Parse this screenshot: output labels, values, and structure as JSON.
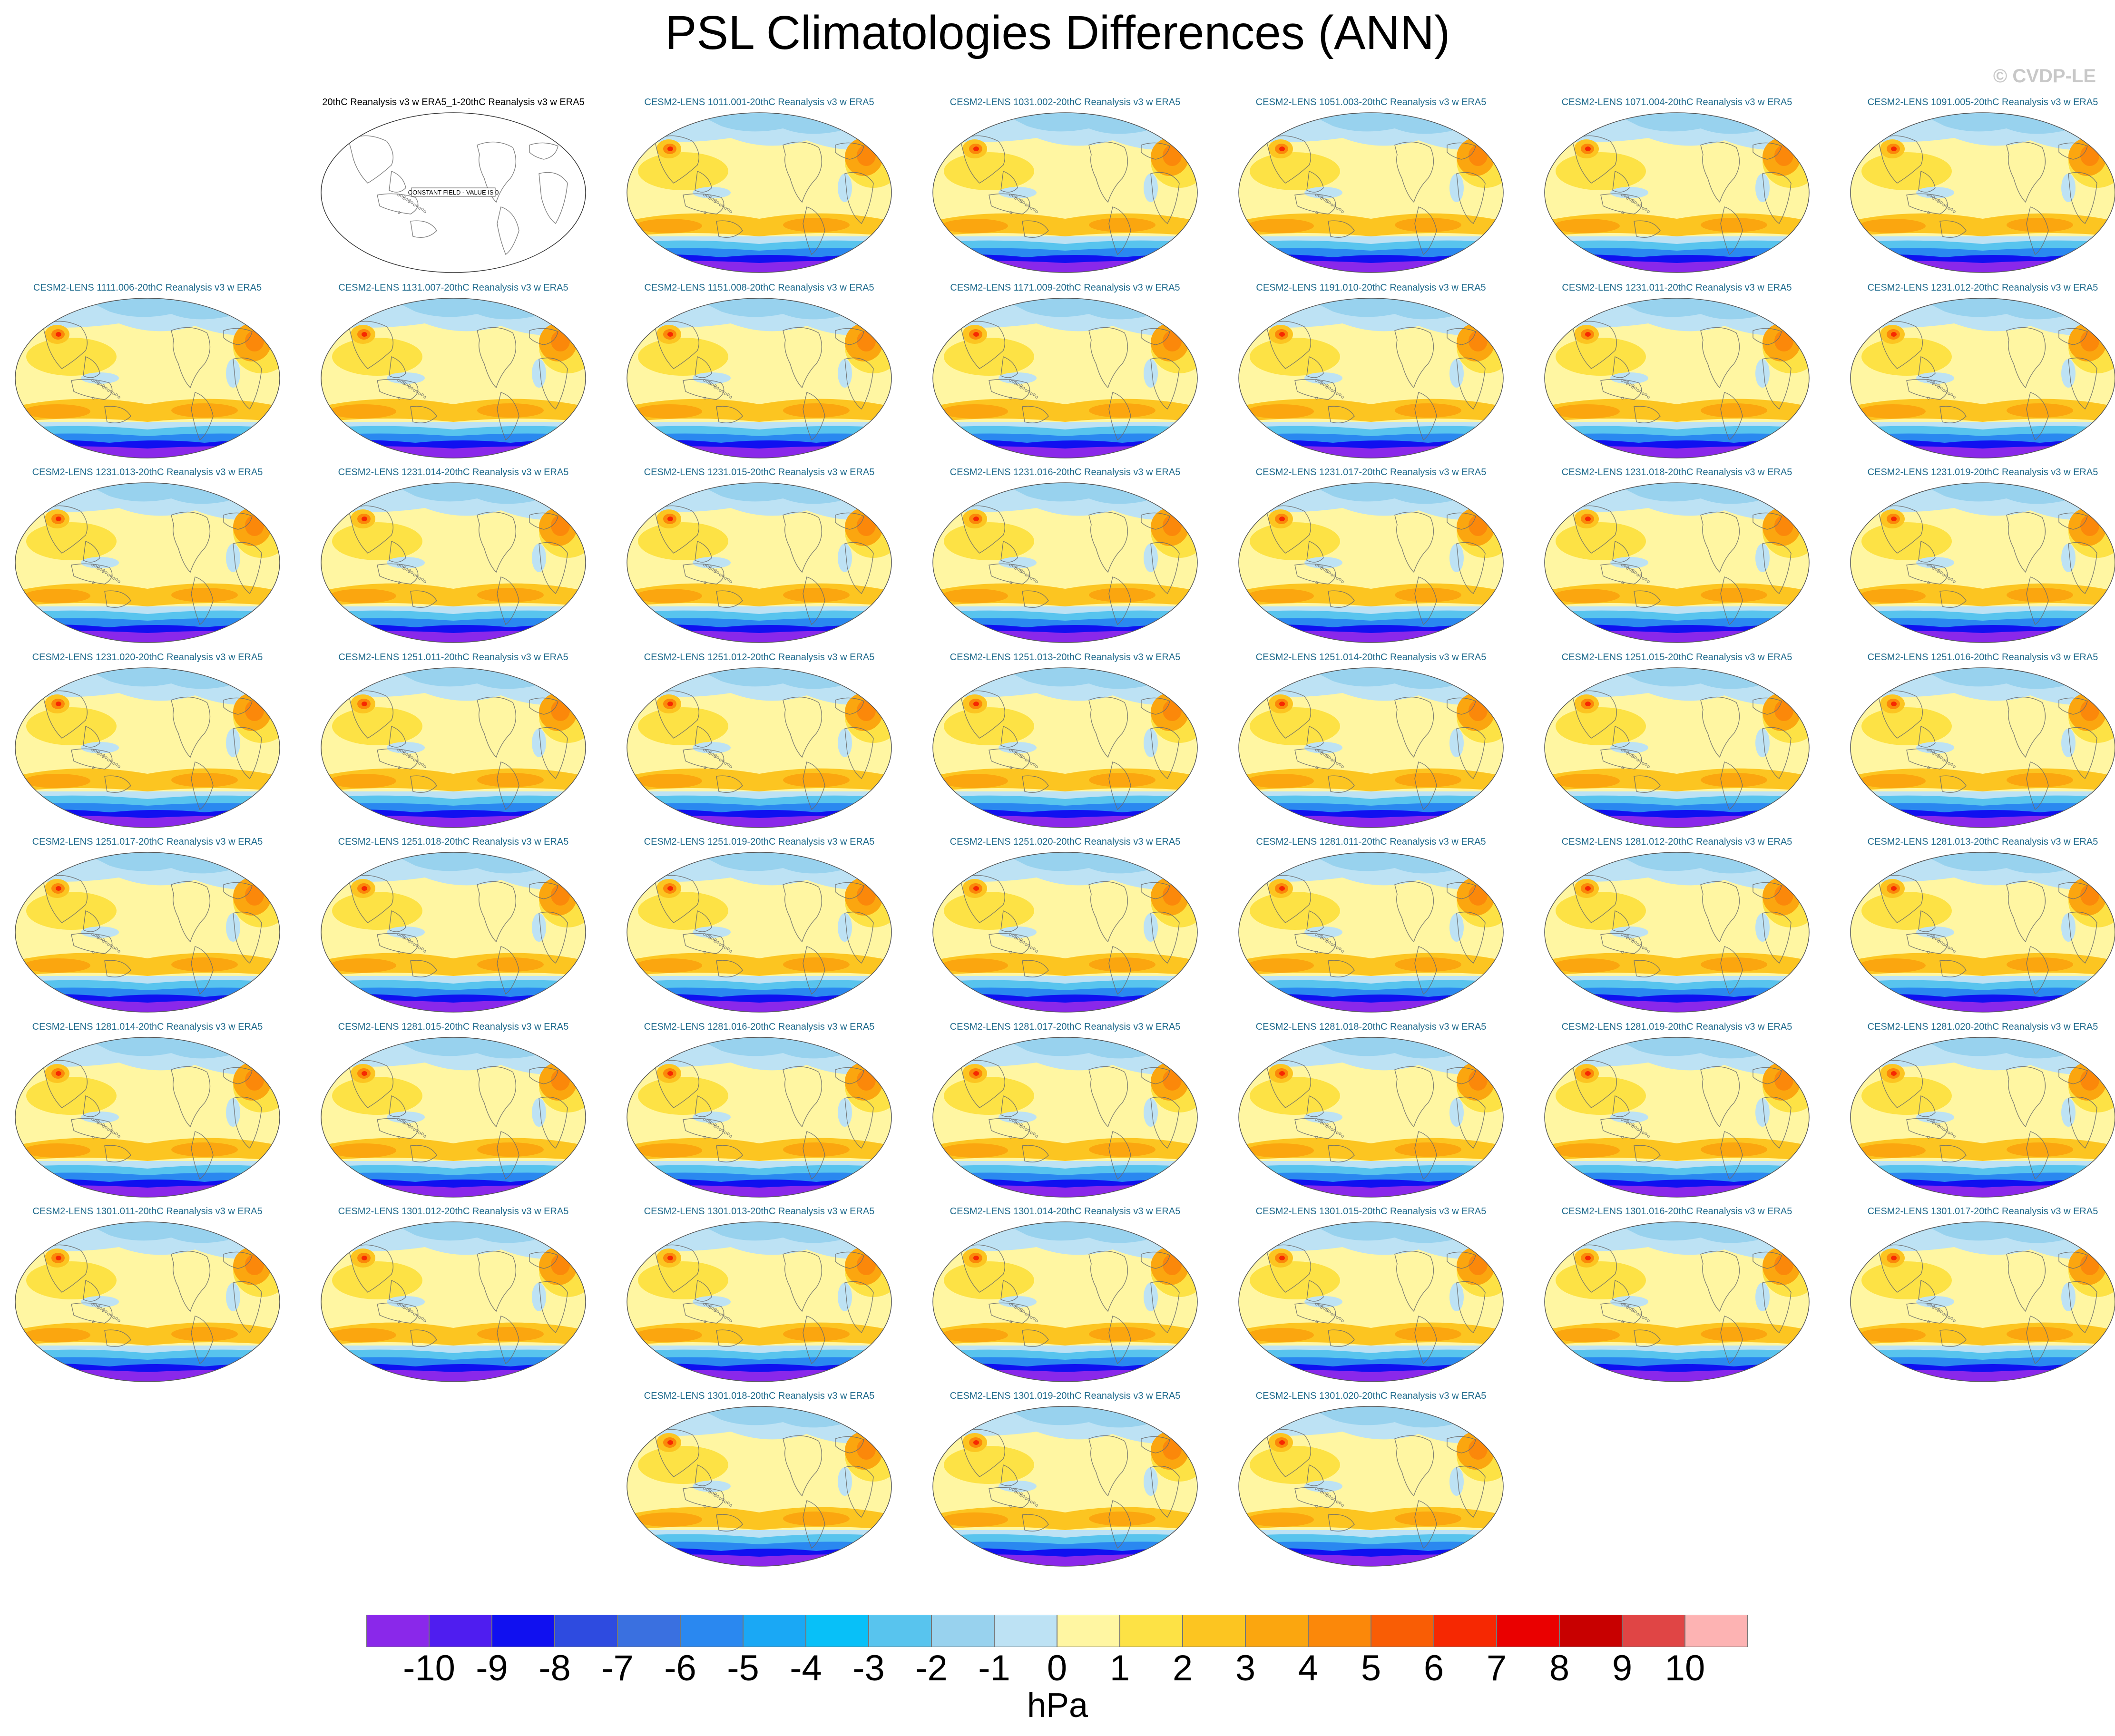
{
  "title": "PSL Climatologies Differences (ANN)",
  "watermark": "© CVDP-LE",
  "constant_field_text": "CONSTANT FIELD - VALUE IS 0",
  "panel_titles": [
    "20thC Reanalysis v3 w ERA5_1-20thC Reanalysis v3 w ERA5",
    "CESM2-LENS 1011.001-20thC Reanalysis v3 w ERA5",
    "CESM2-LENS 1031.002-20thC Reanalysis v3 w ERA5",
    "CESM2-LENS 1051.003-20thC Reanalysis v3 w ERA5",
    "CESM2-LENS 1071.004-20thC Reanalysis v3 w ERA5",
    "CESM2-LENS 1091.005-20thC Reanalysis v3 w ERA5",
    "CESM2-LENS 1111.006-20thC Reanalysis v3 w ERA5",
    "CESM2-LENS 1131.007-20thC Reanalysis v3 w ERA5",
    "CESM2-LENS 1151.008-20thC Reanalysis v3 w ERA5",
    "CESM2-LENS 1171.009-20thC Reanalysis v3 w ERA5",
    "CESM2-LENS 1191.010-20thC Reanalysis v3 w ERA5",
    "CESM2-LENS 1231.011-20thC Reanalysis v3 w ERA5",
    "CESM2-LENS 1231.012-20thC Reanalysis v3 w ERA5",
    "CESM2-LENS 1231.013-20thC Reanalysis v3 w ERA5",
    "CESM2-LENS 1231.014-20thC Reanalysis v3 w ERA5",
    "CESM2-LENS 1231.015-20thC Reanalysis v3 w ERA5",
    "CESM2-LENS 1231.016-20thC Reanalysis v3 w ERA5",
    "CESM2-LENS 1231.017-20thC Reanalysis v3 w ERA5",
    "CESM2-LENS 1231.018-20thC Reanalysis v3 w ERA5",
    "CESM2-LENS 1231.019-20thC Reanalysis v3 w ERA5",
    "CESM2-LENS 1231.020-20thC Reanalysis v3 w ERA5",
    "CESM2-LENS 1251.011-20thC Reanalysis v3 w ERA5",
    "CESM2-LENS 1251.012-20thC Reanalysis v3 w ERA5",
    "CESM2-LENS 1251.013-20thC Reanalysis v3 w ERA5",
    "CESM2-LENS 1251.014-20thC Reanalysis v3 w ERA5",
    "CESM2-LENS 1251.015-20thC Reanalysis v3 w ERA5",
    "CESM2-LENS 1251.016-20thC Reanalysis v3 w ERA5",
    "CESM2-LENS 1251.017-20thC Reanalysis v3 w ERA5",
    "CESM2-LENS 1251.018-20thC Reanalysis v3 w ERA5",
    "CESM2-LENS 1251.019-20thC Reanalysis v3 w ERA5",
    "CESM2-LENS 1251.020-20thC Reanalysis v3 w ERA5",
    "CESM2-LENS 1281.011-20thC Reanalysis v3 w ERA5",
    "CESM2-LENS 1281.012-20thC Reanalysis v3 w ERA5",
    "CESM2-LENS 1281.013-20thC Reanalysis v3 w ERA5",
    "CESM2-LENS 1281.014-20thC Reanalysis v3 w ERA5",
    "CESM2-LENS 1281.015-20thC Reanalysis v3 w ERA5",
    "CESM2-LENS 1281.016-20thC Reanalysis v3 w ERA5",
    "CESM2-LENS 1281.017-20thC Reanalysis v3 w ERA5",
    "CESM2-LENS 1281.018-20thC Reanalysis v3 w ERA5",
    "CESM2-LENS 1281.019-20thC Reanalysis v3 w ERA5",
    "CESM2-LENS 1281.020-20thC Reanalysis v3 w ERA5",
    "CESM2-LENS 1301.011-20thC Reanalysis v3 w ERA5",
    "CESM2-LENS 1301.012-20thC Reanalysis v3 w ERA5",
    "CESM2-LENS 1301.013-20thC Reanalysis v3 w ERA5",
    "CESM2-LENS 1301.014-20thC Reanalysis v3 w ERA5",
    "CESM2-LENS 1301.015-20thC Reanalysis v3 w ERA5",
    "CESM2-LENS 1301.016-20thC Reanalysis v3 w ERA5",
    "CESM2-LENS 1301.017-20thC Reanalysis v3 w ERA5",
    "CESM2-LENS 1301.018-20thC Reanalysis v3 w ERA5",
    "CESM2-LENS 1301.019-20thC Reanalysis v3 w ERA5",
    "CESM2-LENS 1301.020-20thC Reanalysis v3 w ERA5"
  ],
  "colorbar": {
    "labels": [
      "-10",
      "-9",
      "-8",
      "-7",
      "-6",
      "-5",
      "-4",
      "-3",
      "-2",
      "-1",
      "0",
      "1",
      "2",
      "3",
      "4",
      "5",
      "6",
      "7",
      "8",
      "9",
      "10"
    ],
    "colors": [
      "#8a28ea",
      "#4f1df0",
      "#1010f0",
      "#2e4be0",
      "#3a70e0",
      "#2a88f0",
      "#1aa8f5",
      "#08c0f8",
      "#58c4ee",
      "#98d2ee",
      "#bde2f4",
      "#fff6a2",
      "#fde245",
      "#fcc521",
      "#fba60f",
      "#fb880a",
      "#f95d05",
      "#f62802",
      "#ea0000",
      "#c80000",
      "#e04545",
      "#fdb3b3"
    ],
    "units": "hPa"
  }
}
